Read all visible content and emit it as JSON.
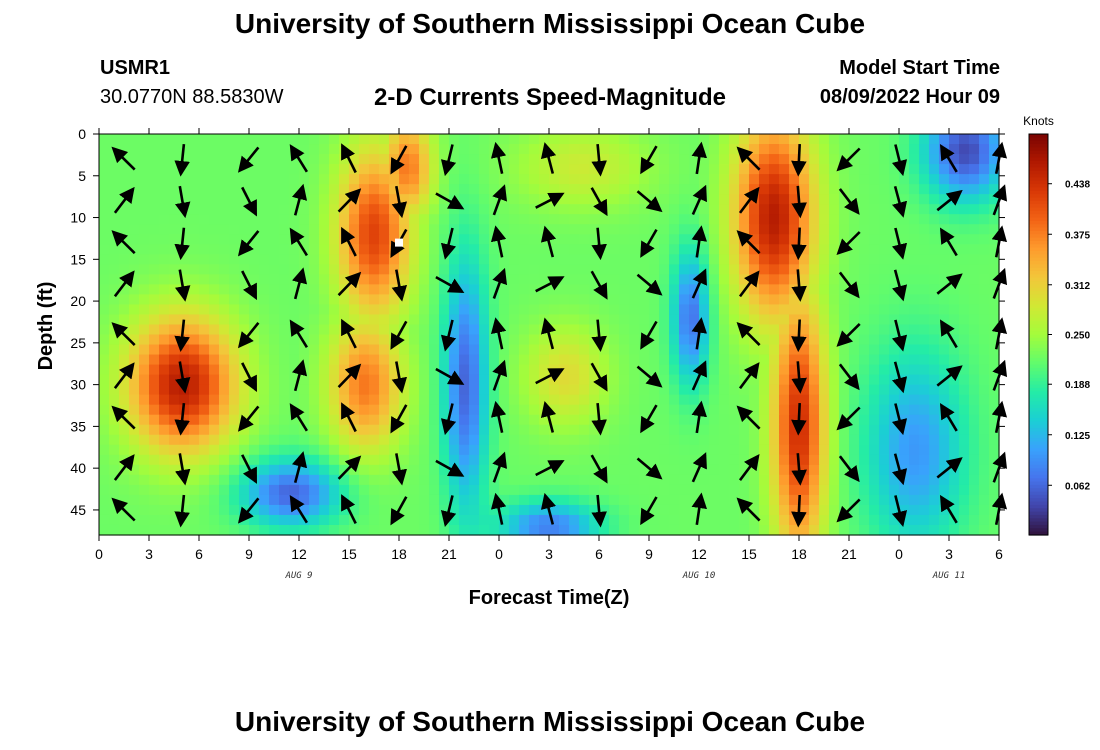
{
  "header": {
    "title": "University of Southern Mississippi Ocean Cube",
    "station_id": "USMR1",
    "station_coords": "30.0770N  88.5830W",
    "plot_title": "2-D Currents Speed-Magnitude",
    "model_start_label": "Model Start Time",
    "model_start_value": "08/09/2022 Hour 09"
  },
  "footer": {
    "title": "University of Southern Mississippi Ocean Cube"
  },
  "chart_data": {
    "type": "heatmap",
    "title": "2-D Currents Speed-Magnitude",
    "xlabel": "Forecast Time(Z)",
    "ylabel": "Depth (ft)",
    "x_range_hours": [
      0,
      54
    ],
    "x_tick_labels": [
      "0",
      "3",
      "6",
      "9",
      "12",
      "15",
      "18",
      "21",
      "0",
      "3",
      "6",
      "9",
      "12",
      "15",
      "18",
      "21",
      "0",
      "3",
      "6"
    ],
    "date_labels": [
      {
        "label": "AUG 9",
        "hour": 12
      },
      {
        "label": "AUG 10",
        "hour": 36
      },
      {
        "label": "AUG 11",
        "hour": 51
      }
    ],
    "y_range_ft": [
      0,
      48
    ],
    "y_reversed": true,
    "y_tick_labels": [
      "0",
      "5",
      "10",
      "15",
      "20",
      "25",
      "30",
      "35",
      "40",
      "45"
    ],
    "y_ticks": [
      0,
      5,
      10,
      15,
      20,
      25,
      30,
      35,
      40,
      45
    ],
    "colorbar": {
      "unit": "Knots",
      "min": 0.0,
      "max": 0.5,
      "tick_values": [
        0.062,
        0.125,
        0.188,
        0.25,
        0.312,
        0.375,
        0.438
      ],
      "tick_labels": [
        "0.062",
        "0.125",
        "0.188",
        "0.250",
        "0.312",
        "0.375",
        "0.438"
      ],
      "colormap": [
        "#30123b",
        "#4145ab",
        "#4675ed",
        "#39a2fc",
        "#1bcfd4",
        "#24eca6",
        "#61fc6c",
        "#a4fc3b",
        "#d1e834",
        "#f3c63a",
        "#fe9b2d",
        "#f36315",
        "#d93806",
        "#b11901",
        "#7a0402"
      ]
    },
    "speed_hotspots": [
      {
        "hour": 5,
        "depth": 30,
        "speed": 0.46,
        "sh": 3.2,
        "sd": 8
      },
      {
        "hour": 16.5,
        "depth": 12,
        "speed": 0.42,
        "sh": 2.2,
        "sd": 10
      },
      {
        "hour": 16,
        "depth": 30,
        "speed": 0.38,
        "sh": 2.2,
        "sd": 8
      },
      {
        "hour": 18.5,
        "depth": 4,
        "speed": 0.38,
        "sh": 1.5,
        "sd": 6
      },
      {
        "hour": 29,
        "depth": 4,
        "speed": 0.28,
        "sh": 4,
        "sd": 5
      },
      {
        "hour": 28,
        "depth": 29,
        "speed": 0.3,
        "sh": 2.5,
        "sd": 6
      },
      {
        "hour": 40.5,
        "depth": 10,
        "speed": 0.46,
        "sh": 2.4,
        "sd": 12
      },
      {
        "hour": 42,
        "depth": 35,
        "speed": 0.44,
        "sh": 1.6,
        "sd": 16
      },
      {
        "hour": 3,
        "depth": 2,
        "speed": 0.2,
        "sh": 3,
        "sd": 4
      },
      {
        "hour": 0.5,
        "depth": 30,
        "speed": 0.18,
        "sh": 1,
        "sd": 15
      }
    ],
    "speed_lows": [
      {
        "hour": 22,
        "depth": 30,
        "drop": 0.16,
        "sh": 1.3,
        "sd": 15
      },
      {
        "hour": 11.5,
        "depth": 43,
        "drop": 0.16,
        "sh": 3,
        "sd": 4
      },
      {
        "hour": 35.5,
        "depth": 22,
        "drop": 0.15,
        "sh": 1.1,
        "sd": 8
      },
      {
        "hour": 52,
        "depth": 2,
        "drop": 0.18,
        "sh": 2.5,
        "sd": 6
      },
      {
        "hour": 49,
        "depth": 38,
        "drop": 0.12,
        "sh": 3,
        "sd": 12
      },
      {
        "hour": 27,
        "depth": 47,
        "drop": 0.14,
        "sh": 3,
        "sd": 3
      }
    ],
    "speed_base": 0.22,
    "vectors_hours": [
      1.5,
      5,
      9,
      12,
      15,
      18,
      21,
      24,
      27,
      30,
      33,
      36,
      39,
      42,
      45,
      48,
      51,
      54
    ],
    "vectors_depths": [
      3,
      8,
      13,
      18,
      24,
      29,
      34,
      40,
      45
    ],
    "vector_direction_pattern": "alternating-tidal",
    "marker": {
      "hour": 18,
      "depth": 13
    }
  }
}
